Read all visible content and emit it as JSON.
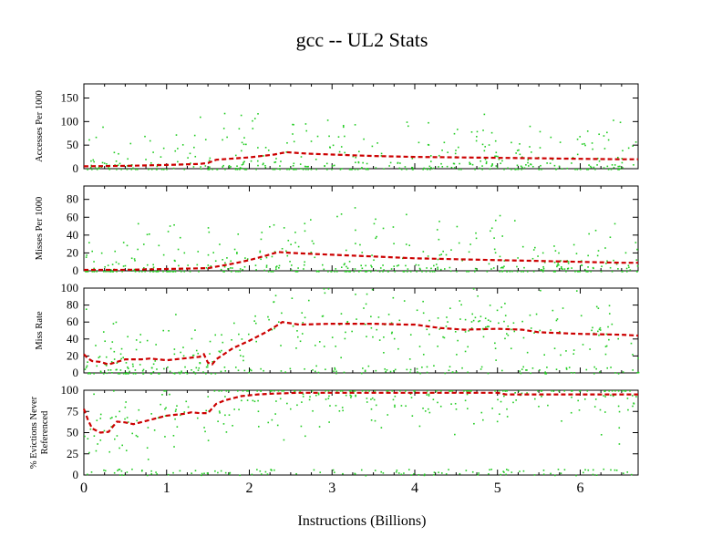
{
  "chart_data": {
    "type": "line",
    "title": "gcc -- UL2  Stats",
    "xlabel": "Instructions (Billions)",
    "xlim": [
      0,
      6.7
    ],
    "xticks": [
      "0",
      "1",
      "2",
      "3",
      "4",
      "5",
      "6"
    ],
    "panels": [
      {
        "ylabel": [
          "Accesses Per 1000"
        ],
        "ylim": [
          0,
          180
        ],
        "yticks": [
          "0",
          "50",
          "100",
          "150"
        ],
        "series": [
          {
            "style": "dashed",
            "color": "#cc0000",
            "x": [
              0,
              0.5,
              1.0,
              1.4,
              1.5,
              1.6,
              2.0,
              2.3,
              2.45,
              2.7,
              3.0,
              3.5,
              4.0,
              4.5,
              5.0,
              5.5,
              6.0,
              6.5,
              6.7
            ],
            "y": [
              5,
              6,
              8,
              10,
              12,
              19,
              24,
              30,
              35,
              32,
              30,
              27,
              25,
              24,
              23,
              22,
              21,
              20,
              20
            ]
          }
        ]
      },
      {
        "ylabel": [
          "Misses Per 1000"
        ],
        "ylim": [
          0,
          95
        ],
        "yticks": [
          "0",
          "20",
          "40",
          "60",
          "80"
        ],
        "series": [
          {
            "style": "dashed",
            "color": "#cc0000",
            "x": [
              0,
              0.5,
              1.0,
              1.5,
              1.8,
              2.0,
              2.2,
              2.35,
              2.5,
              3.0,
              3.5,
              4.0,
              4.5,
              5.0,
              5.5,
              6.0,
              6.5,
              6.7
            ],
            "y": [
              1,
              1,
              2,
              3,
              8,
              12,
              17,
              21,
              20,
              18,
              16,
              14,
              13,
              12,
              11,
              10,
              9,
              9
            ]
          }
        ]
      },
      {
        "ylabel": [
          "Miss Rate"
        ],
        "ylim": [
          0,
          100
        ],
        "yticks": [
          "0",
          "20",
          "40",
          "60",
          "80",
          "100"
        ],
        "series": [
          {
            "style": "dashed",
            "color": "#cc0000",
            "x": [
              0,
              0.05,
              0.1,
              0.2,
              0.3,
              0.4,
              0.5,
              0.7,
              0.8,
              1.0,
              1.2,
              1.4,
              1.45,
              1.5,
              1.55,
              1.6,
              1.8,
              2.0,
              2.2,
              2.35,
              2.4,
              2.6,
              3.0,
              3.5,
              3.9,
              4.0,
              4.3,
              4.6,
              5.0,
              5.3,
              5.5,
              6.0,
              6.5,
              6.7
            ],
            "y": [
              22,
              17,
              14,
              13,
              10,
              13,
              16,
              16,
              17,
              15,
              17,
              19,
              22,
              12,
              10,
              16,
              29,
              38,
              48,
              57,
              60,
              57,
              58,
              58,
              57,
              57,
              53,
              51,
              52,
              51,
              48,
              46,
              45,
              44
            ]
          }
        ]
      },
      {
        "ylabel": [
          "% Evictions Never",
          "Referenced"
        ],
        "ylim": [
          0,
          100
        ],
        "yticks": [
          "0",
          "25",
          "50",
          "75",
          "100"
        ],
        "series": [
          {
            "style": "dashed",
            "color": "#cc0000",
            "x": [
              0,
              0.05,
              0.1,
              0.2,
              0.3,
              0.4,
              0.5,
              0.6,
              0.8,
              1.0,
              1.2,
              1.3,
              1.4,
              1.5,
              1.6,
              1.7,
              1.9,
              2.1,
              2.3,
              2.6,
              3.0,
              3.5,
              4.0,
              4.5,
              5.0,
              5.1,
              5.5,
              6.0,
              6.5,
              6.7
            ],
            "y": [
              78,
              65,
              55,
              50,
              51,
              63,
              62,
              60,
              65,
              70,
              72,
              74,
              73,
              73,
              84,
              88,
              93,
              95,
              96,
              97,
              97,
              97,
              97,
              97,
              97,
              95,
              95,
              95,
              95,
              95
            ]
          }
        ]
      }
    ]
  },
  "colors": {
    "trend": "#cc0000",
    "scatter": "#22cc22",
    "axis": "#000000"
  }
}
